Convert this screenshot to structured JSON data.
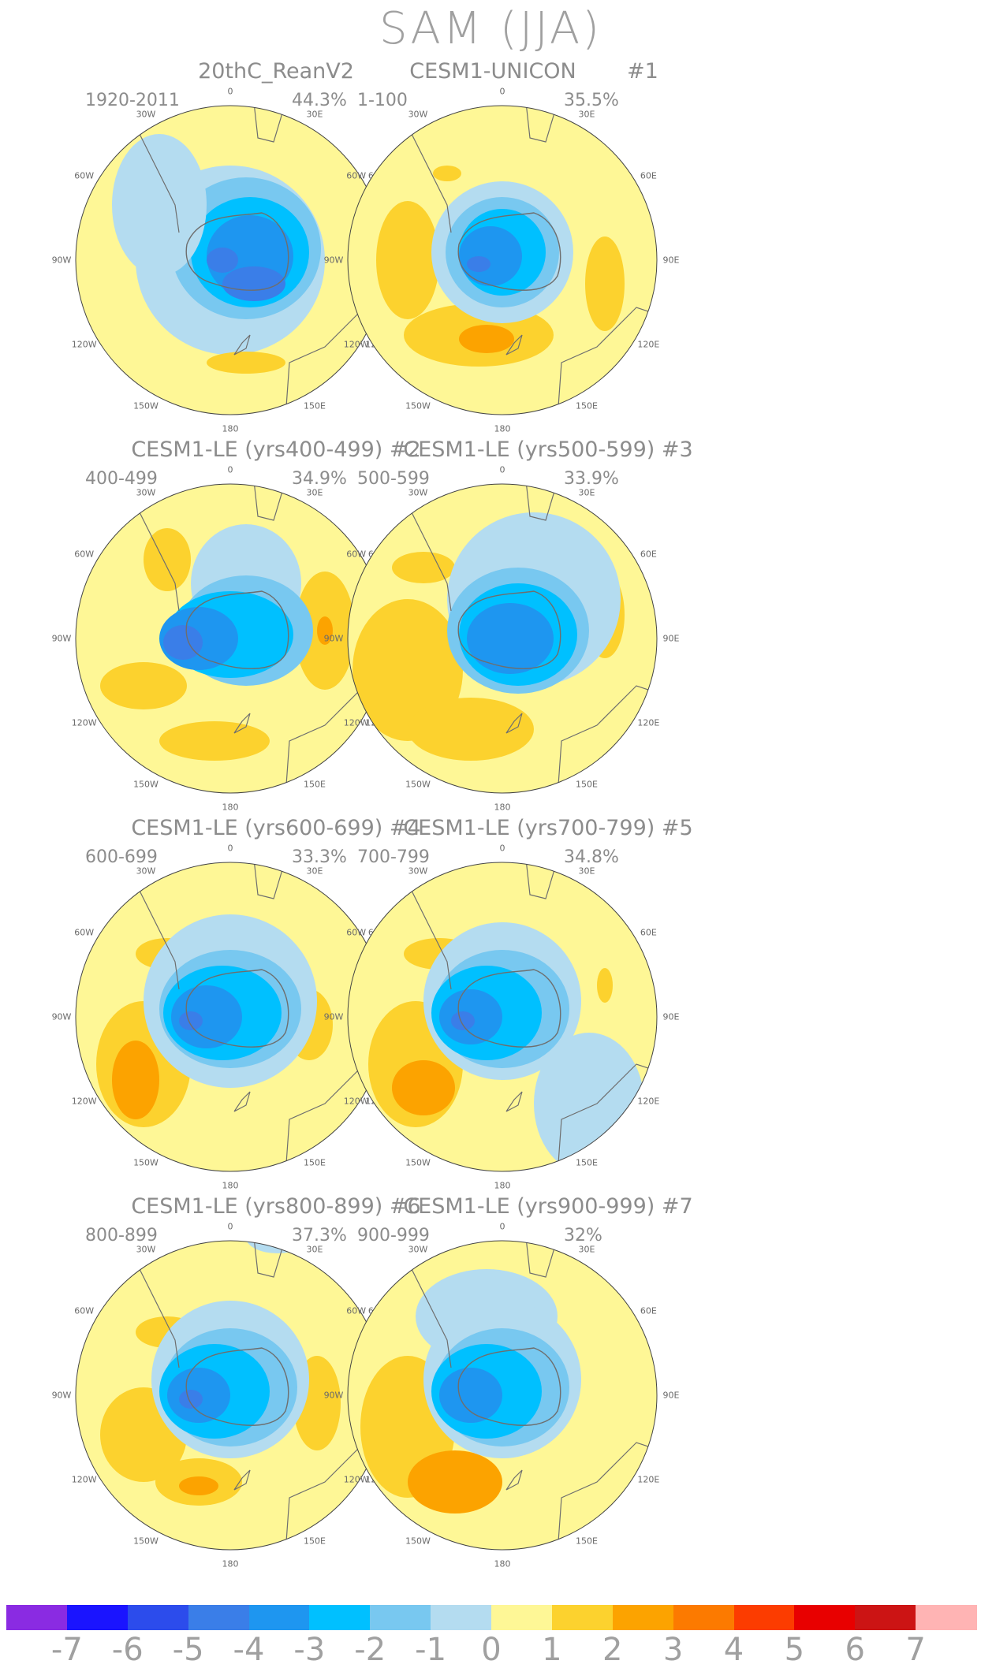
{
  "title": "SAM (JJA)",
  "lon_labels": [
    "0",
    "30E",
    "60E",
    "90E",
    "120E",
    "150E",
    "180",
    "150W",
    "120W",
    "90W",
    "60W",
    "30W"
  ],
  "panels": [
    {
      "title": "20thC_ReanV2",
      "num": "",
      "years": "1920-2011",
      "variance": "44.3%"
    },
    {
      "title": "CESM1-UNICON",
      "num": "#1",
      "years": "1-100",
      "variance": "35.5%"
    },
    {
      "title": "CESM1-LE (yrs400-499) #2",
      "num": "",
      "years": "400-499",
      "variance": "34.9%"
    },
    {
      "title": "CESM1-LE (yrs500-599) #3",
      "num": "",
      "years": "500-599",
      "variance": "33.9%"
    },
    {
      "title": "CESM1-LE (yrs600-699) #4",
      "num": "",
      "years": "600-699",
      "variance": "33.3%"
    },
    {
      "title": "CESM1-LE (yrs700-799) #5",
      "num": "",
      "years": "700-799",
      "variance": "34.8%"
    },
    {
      "title": "CESM1-LE (yrs800-899) #6",
      "num": "",
      "years": "800-899",
      "variance": "37.3%"
    },
    {
      "title": "CESM1-LE (yrs900-999) #7",
      "num": "",
      "years": "900-999",
      "variance": "32%"
    }
  ],
  "colorbar": {
    "labels": [
      "-7",
      "-6",
      "-5",
      "-4",
      "-3",
      "-2",
      "-1",
      "0",
      "1",
      "2",
      "3",
      "4",
      "5",
      "6",
      "7"
    ],
    "colors": [
      "#8a2be2",
      "#1a14ff",
      "#2c4cec",
      "#3a7ee8",
      "#1e96f0",
      "#00c0ff",
      "#78c8f0",
      "#b4dcf0",
      "#fef796",
      "#fcd22e",
      "#fca300",
      "#fc7a00",
      "#fc3c00",
      "#e80000",
      "#cc1414",
      "#ffb4b4"
    ]
  },
  "colors": {
    "land": "#6e6e6e",
    "neutral": "#fef796",
    "text": "#8c8c8c"
  }
}
